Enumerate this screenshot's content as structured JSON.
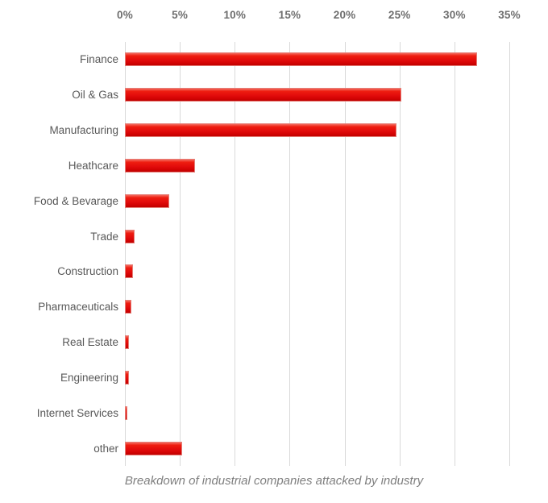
{
  "chart_data": {
    "type": "bar",
    "orientation": "horizontal",
    "title": "Breakdown of industrial companies attacked by industry",
    "xlabel": "",
    "ylabel": "",
    "categories": [
      "Finance",
      "Oil & Gas",
      "Manufacturing",
      "Heathcare",
      "Food & Bevarage",
      "Trade",
      "Construction",
      "Pharmaceuticals",
      "Real Estate",
      "Engineering",
      "Internet Services",
      "other"
    ],
    "values": [
      32.1,
      25.2,
      24.7,
      6.4,
      4.0,
      0.9,
      0.7,
      0.6,
      0.4,
      0.4,
      0.2,
      5.2
    ],
    "unit": "%",
    "x_ticks": [
      "0%",
      "5%",
      "10%",
      "15%",
      "20%",
      "25%",
      "30%",
      "35%"
    ],
    "x_tick_values": [
      0,
      5,
      10,
      15,
      20,
      25,
      30,
      35
    ],
    "xlim": [
      0,
      35
    ],
    "grid": "vertical",
    "legend": "none",
    "bar_color": "#e30c0c",
    "gridline_color": "#d9d9d9",
    "label_color": "#595959",
    "caption_color": "#7f7f7f"
  }
}
